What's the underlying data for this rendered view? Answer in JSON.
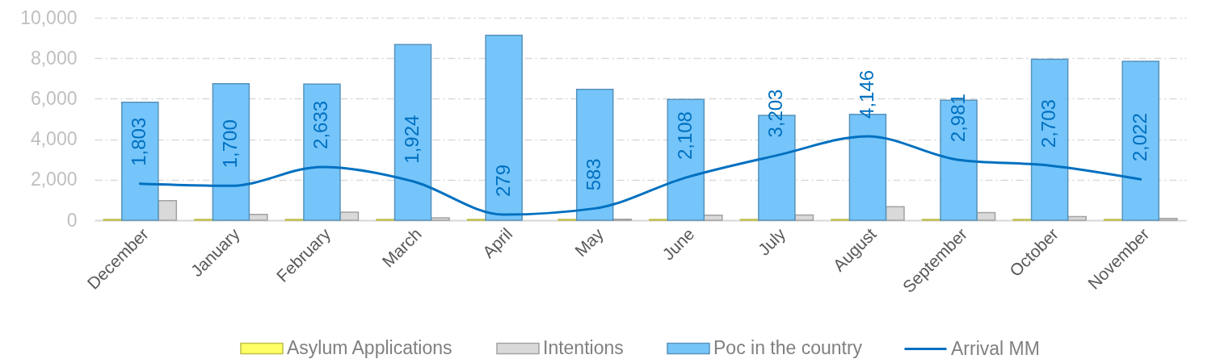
{
  "chart_data": {
    "type": "bar",
    "categories": [
      "December",
      "January",
      "February",
      "March",
      "April",
      "May",
      "June",
      "July",
      "August",
      "September",
      "October",
      "November"
    ],
    "series": [
      {
        "name": "Asylum Applications",
        "color": "#ffff66",
        "values": [
          40,
          40,
          40,
          40,
          40,
          40,
          40,
          40,
          40,
          40,
          40,
          40
        ]
      },
      {
        "name": "Intentions",
        "color": "#d9d9d9",
        "values": [
          970,
          290,
          400,
          120,
          null,
          50,
          250,
          260,
          670,
          380,
          180,
          90
        ]
      },
      {
        "name": "Poc in the country",
        "color": "#75c5fa",
        "values": [
          5830,
          6740,
          6720,
          8680,
          9130,
          6460,
          5970,
          5180,
          5230,
          5930,
          7950,
          7850
        ]
      },
      {
        "name": "Arrival MM",
        "type": "line",
        "color": "#0070c0",
        "values": [
          1803,
          1700,
          2633,
          1924,
          279,
          583,
          2108,
          3203,
          4146,
          2981,
          2703,
          2022
        ],
        "value_labels": [
          "1,803",
          "1,700",
          "2,633",
          "1,924",
          "279",
          "583",
          "2,108",
          "3,203",
          "4,146",
          "2,981",
          "2,703",
          "2,022"
        ]
      }
    ],
    "ylim": [
      0,
      10000
    ],
    "yticks": [
      0,
      {
        "value": 2000,
        "label": "2,000"
      },
      {
        "value": 4000,
        "label": "4,000"
      },
      {
        "value": 6000,
        "label": "6,000"
      },
      {
        "value": 8000,
        "label": "8,000"
      },
      {
        "value": 10000,
        "label": "10,000"
      }
    ],
    "grid": "y",
    "legend": "bottom"
  }
}
